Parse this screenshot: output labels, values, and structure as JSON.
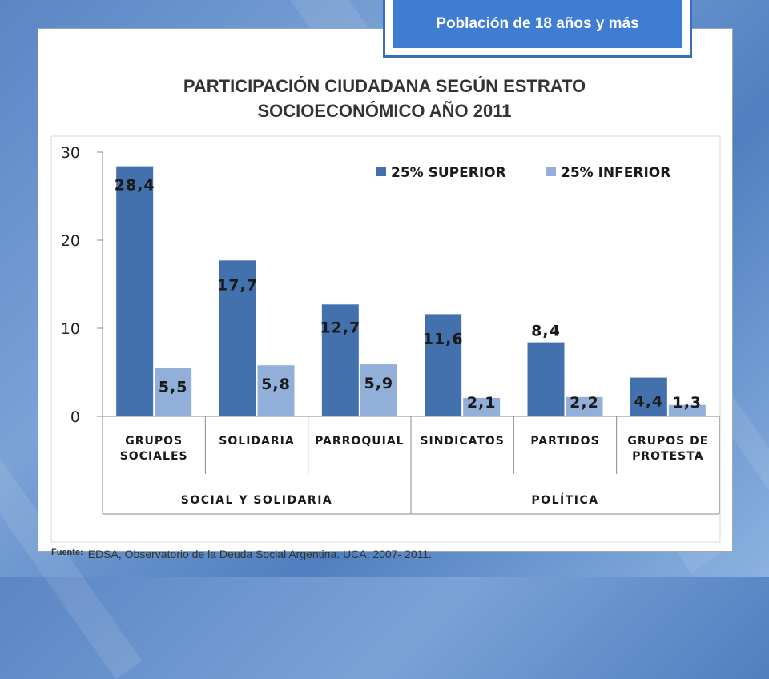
{
  "badge": "Población de 18 años y más",
  "title_line1": "PARTICIPACIÓN CIUDADANA SEGÚN ESTRATO",
  "title_line2": "SOCIOECONÓMICO AÑO 2011",
  "source_label": "Fuente:",
  "source_text": "EDSA, Observatorio de la Deuda Social Argentina. UCA, 2007- 2011.",
  "colors": {
    "superior": "#4271ad",
    "inferior": "#92afd9"
  },
  "chart_data": {
    "type": "bar",
    "title": "PARTICIPACIÓN CIUDADANA SEGÚN ESTRATO SOCIOECONÓMICO AÑO 2011",
    "categories": [
      [
        "GRUPOS",
        "SOCIALES"
      ],
      [
        "SOLIDARIA"
      ],
      [
        "PARROQUIAL"
      ],
      [
        "SINDICATOS"
      ],
      [
        "PARTIDOS"
      ],
      [
        "GRUPOS DE",
        "PROTESTA"
      ]
    ],
    "groups": [
      {
        "label": "SOCIAL Y SOLIDARIA",
        "span": [
          0,
          2
        ]
      },
      {
        "label": "POLÍTICA",
        "span": [
          3,
          5
        ]
      }
    ],
    "series": [
      {
        "name": "25% SUPERIOR",
        "values": [
          28.4,
          17.7,
          12.7,
          11.6,
          8.4,
          4.4
        ],
        "labels": [
          "28,4",
          "17,7",
          "12,7",
          "11,6",
          "8,4",
          "4,4"
        ]
      },
      {
        "name": "25% INFERIOR",
        "values": [
          5.5,
          5.8,
          5.9,
          2.1,
          2.2,
          1.3
        ],
        "labels": [
          "5,5",
          "5,8",
          "5,9",
          "2,1",
          "2,2",
          "1,3"
        ]
      }
    ],
    "yticks": [
      "0",
      "10",
      "20",
      "30"
    ],
    "ylim": [
      0,
      30
    ],
    "legend_position": "top-right",
    "grid": false
  }
}
